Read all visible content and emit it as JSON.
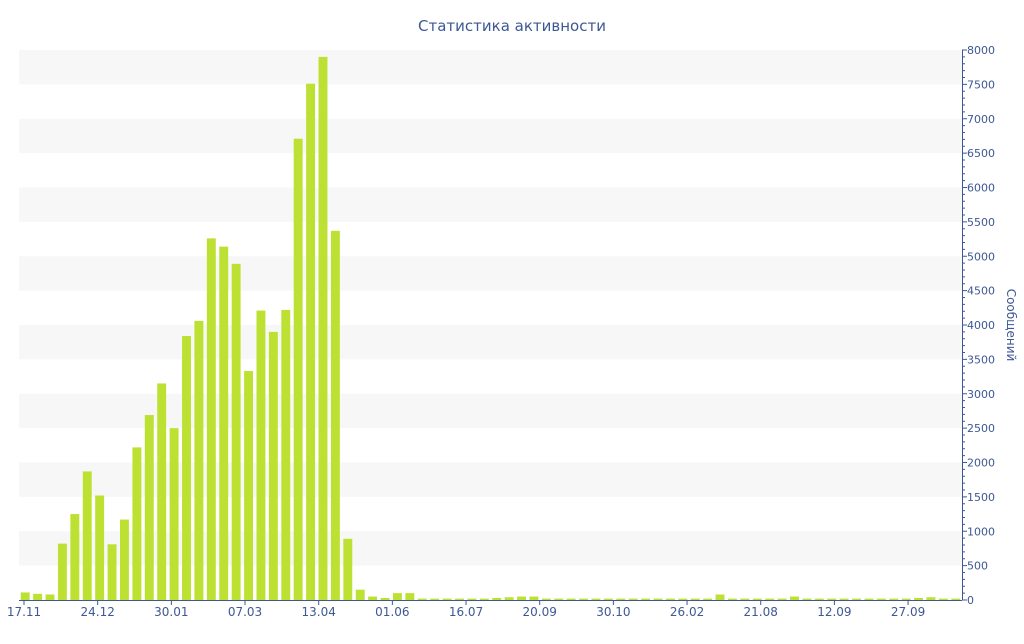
{
  "chart_data": {
    "type": "bar",
    "title": "Статистика активности",
    "xlabel": "",
    "ylabel": "Сообщений",
    "ylim": [
      0,
      8000
    ],
    "yticks": [
      0,
      500,
      1000,
      1500,
      2000,
      2500,
      3000,
      3500,
      4000,
      4500,
      5000,
      5500,
      6000,
      6500,
      7000,
      7500,
      8000
    ],
    "x_tick_labels": [
      "17.11",
      "24.12",
      "30.01",
      "07.03",
      "13.04",
      "01.06",
      "16.07",
      "20.09",
      "30.10",
      "26.02",
      "21.08",
      "12.09",
      "27.09"
    ],
    "values": [
      110,
      90,
      80,
      820,
      1250,
      1870,
      1520,
      810,
      1170,
      2220,
      2690,
      3150,
      2500,
      3840,
      4060,
      5260,
      5140,
      4890,
      3330,
      4210,
      3900,
      4220,
      6710,
      7510,
      7900,
      5370,
      890,
      150,
      50,
      30,
      100,
      100,
      20,
      20,
      20,
      20,
      20,
      20,
      30,
      40,
      50,
      50,
      20,
      20,
      20,
      20,
      20,
      20,
      20,
      20,
      20,
      20,
      20,
      20,
      20,
      20,
      80,
      20,
      20,
      20,
      20,
      20,
      50,
      20,
      20,
      20,
      20,
      20,
      20,
      20,
      20,
      20,
      30,
      40,
      20,
      20
    ],
    "bar_color": "#bde132",
    "band_color": "#f7f7f7",
    "text_color": "#3d5894",
    "grid": true,
    "y_axis_side": "right"
  }
}
